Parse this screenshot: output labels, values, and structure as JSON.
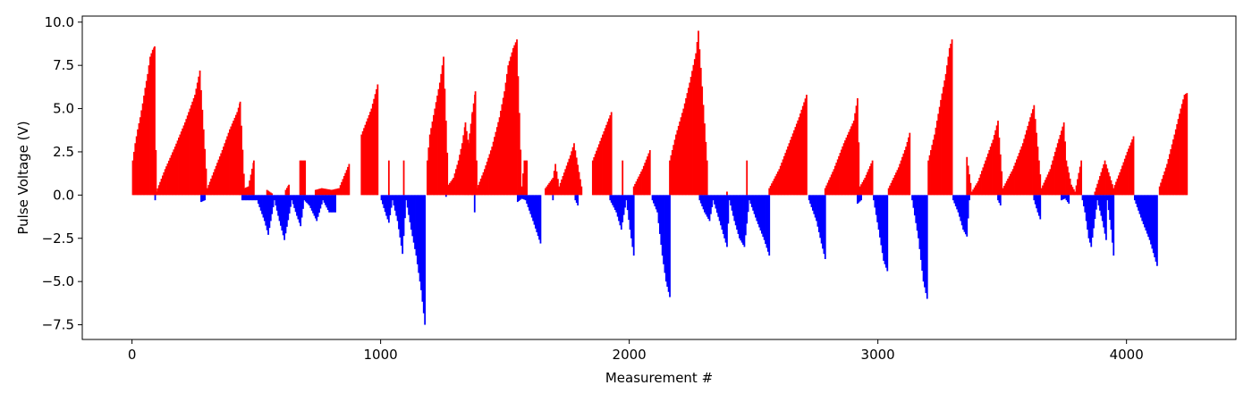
{
  "chart_data": {
    "type": "bar",
    "title": "",
    "xlabel": "Measurement #",
    "ylabel": "Pulse Voltage (V)",
    "xlim": [
      -200,
      4440
    ],
    "ylim": [
      -8.35,
      10.35
    ],
    "xticks": [
      0,
      1000,
      2000,
      3000,
      4000
    ],
    "xtick_labels": [
      "0",
      "1000",
      "2000",
      "3000",
      "4000"
    ],
    "yticks": [
      -7.5,
      -5.0,
      -2.5,
      0.0,
      2.5,
      5.0,
      7.5,
      10.0
    ],
    "ytick_labels": [
      "−7.5",
      "−5.0",
      "−2.5",
      "0.0",
      "2.5",
      "5.0",
      "7.5",
      "10.0"
    ],
    "grid": false,
    "colors": {
      "positive": "#ff0000",
      "negative": "#0000ff"
    },
    "series": [
      {
        "color": "red",
        "points": [
          [
            0,
            2.0
          ],
          [
            10,
            3.0
          ],
          [
            20,
            3.8
          ],
          [
            30,
            4.5
          ],
          [
            40,
            5.3
          ],
          [
            50,
            6.2
          ],
          [
            60,
            7.0
          ],
          [
            70,
            8.0
          ],
          [
            80,
            8.4
          ],
          [
            88,
            8.6
          ],
          [
            95,
            0.2
          ],
          [
            130,
            1.5
          ],
          [
            170,
            2.8
          ],
          [
            210,
            4.2
          ],
          [
            250,
            5.8
          ],
          [
            270,
            7.2
          ],
          [
            300,
            0.4
          ],
          [
            330,
            1.5
          ],
          [
            360,
            2.6
          ],
          [
            390,
            3.8
          ],
          [
            420,
            4.8
          ],
          [
            432,
            5.4
          ],
          [
            450,
            0.4
          ],
          [
            465,
            0.5
          ],
          [
            487,
            2.0
          ],
          [
            540,
            0.3
          ],
          [
            560,
            0.1
          ],
          [
            615,
            0.3
          ],
          [
            628,
            0.6
          ],
          [
            673,
            2.0
          ],
          [
            693,
            2.0
          ],
          [
            735,
            0.3
          ],
          [
            760,
            0.4
          ],
          [
            800,
            0.3
          ],
          [
            830,
            0.4
          ],
          [
            870,
            1.8
          ],
          [
            920,
            3.5
          ],
          [
            960,
            5.0
          ],
          [
            985,
            6.4
          ],
          [
            1030,
            2.0
          ],
          [
            1090,
            2.0
          ],
          [
            1185,
            2.0
          ],
          [
            1195,
            3.5
          ],
          [
            1215,
            5.0
          ],
          [
            1235,
            6.5
          ],
          [
            1250,
            8.0
          ],
          [
            1270,
            0.6
          ],
          [
            1290,
            1.0
          ],
          [
            1310,
            2.0
          ],
          [
            1325,
            3.0
          ],
          [
            1338,
            4.2
          ],
          [
            1350,
            3.0
          ],
          [
            1366,
            4.8
          ],
          [
            1378,
            6.0
          ],
          [
            1385,
            0.4
          ],
          [
            1415,
            1.5
          ],
          [
            1445,
            2.8
          ],
          [
            1475,
            4.5
          ],
          [
            1495,
            6.0
          ],
          [
            1510,
            7.5
          ],
          [
            1530,
            8.5
          ],
          [
            1545,
            9.0
          ],
          [
            1565,
            0.5
          ],
          [
            1575,
            2.0
          ],
          [
            1585,
            2.0
          ],
          [
            1660,
            0.4
          ],
          [
            1690,
            1.0
          ],
          [
            1700,
            1.8
          ],
          [
            1715,
            0.5
          ],
          [
            1740,
            1.5
          ],
          [
            1760,
            2.3
          ],
          [
            1775,
            3.0
          ],
          [
            1805,
            0.5
          ],
          [
            1850,
            2.0
          ],
          [
            1890,
            3.5
          ],
          [
            1925,
            4.8
          ],
          [
            1970,
            2.0
          ],
          [
            2015,
            0.5
          ],
          [
            2050,
            1.5
          ],
          [
            2080,
            2.6
          ],
          [
            2160,
            2.0
          ],
          [
            2185,
            3.5
          ],
          [
            2215,
            5.0
          ],
          [
            2240,
            6.5
          ],
          [
            2265,
            8.2
          ],
          [
            2275,
            9.5
          ],
          [
            2310,
            2.0
          ],
          [
            2390,
            0.2
          ],
          [
            2470,
            2.0
          ],
          [
            2560,
            0.4
          ],
          [
            2600,
            1.5
          ],
          [
            2640,
            3.0
          ],
          [
            2680,
            4.5
          ],
          [
            2710,
            5.8
          ],
          [
            2785,
            0.4
          ],
          [
            2820,
            1.5
          ],
          [
            2860,
            3.0
          ],
          [
            2900,
            4.3
          ],
          [
            2915,
            5.6
          ],
          [
            2925,
            0.5
          ],
          [
            2945,
            1.0
          ],
          [
            2960,
            1.5
          ],
          [
            2975,
            2.0
          ],
          [
            3040,
            0.4
          ],
          [
            3080,
            1.6
          ],
          [
            3110,
            2.8
          ],
          [
            3125,
            3.6
          ],
          [
            3200,
            2.0
          ],
          [
            3225,
            3.5
          ],
          [
            3250,
            5.5
          ],
          [
            3270,
            7.0
          ],
          [
            3285,
            8.5
          ],
          [
            3295,
            9.0
          ],
          [
            3355,
            2.2
          ],
          [
            3375,
            0.2
          ],
          [
            3400,
            0.8
          ],
          [
            3430,
            2.0
          ],
          [
            3460,
            3.2
          ],
          [
            3480,
            4.3
          ],
          [
            3500,
            0.4
          ],
          [
            3540,
            1.5
          ],
          [
            3580,
            3.0
          ],
          [
            3610,
            4.5
          ],
          [
            3625,
            5.2
          ],
          [
            3655,
            0.4
          ],
          [
            3690,
            1.5
          ],
          [
            3720,
            3.0
          ],
          [
            3745,
            4.2
          ],
          [
            3755,
            2.0
          ],
          [
            3775,
            0.6
          ],
          [
            3790,
            0.2
          ],
          [
            3815,
            2.0
          ],
          [
            3870,
            0.2
          ],
          [
            3910,
            2.0
          ],
          [
            3945,
            0.4
          ],
          [
            3975,
            1.5
          ],
          [
            4000,
            2.5
          ],
          [
            4025,
            3.4
          ],
          [
            4130,
            0.5
          ],
          [
            4160,
            1.8
          ],
          [
            4190,
            3.5
          ],
          [
            4215,
            5.0
          ],
          [
            4230,
            5.8
          ],
          [
            4240,
            5.9
          ]
        ]
      },
      {
        "color": "blue",
        "points": [
          [
            90,
            -0.3
          ],
          [
            275,
            -0.4
          ],
          [
            290,
            -0.3
          ],
          [
            440,
            -0.3
          ],
          [
            460,
            -0.3
          ],
          [
            500,
            -0.3
          ],
          [
            530,
            -1.5
          ],
          [
            545,
            -2.3
          ],
          [
            570,
            -0.3
          ],
          [
            590,
            -1.5
          ],
          [
            610,
            -2.6
          ],
          [
            640,
            -0.3
          ],
          [
            660,
            -1.2
          ],
          [
            675,
            -1.8
          ],
          [
            690,
            -0.3
          ],
          [
            710,
            -0.6
          ],
          [
            730,
            -1.2
          ],
          [
            740,
            -1.5
          ],
          [
            765,
            -0.3
          ],
          [
            790,
            -1.0
          ],
          [
            815,
            -1.0
          ],
          [
            1000,
            -0.3
          ],
          [
            1020,
            -1.2
          ],
          [
            1030,
            -1.6
          ],
          [
            1045,
            -0.3
          ],
          [
            1065,
            -1.5
          ],
          [
            1085,
            -3.4
          ],
          [
            1100,
            -0.3
          ],
          [
            1120,
            -2.0
          ],
          [
            1140,
            -3.5
          ],
          [
            1160,
            -5.5
          ],
          [
            1175,
            -7.5
          ],
          [
            1260,
            -0.1
          ],
          [
            1375,
            -1.0
          ],
          [
            1548,
            -0.4
          ],
          [
            1565,
            -0.2
          ],
          [
            1580,
            -0.3
          ],
          [
            1610,
            -1.5
          ],
          [
            1640,
            -2.8
          ],
          [
            1690,
            -0.3
          ],
          [
            1780,
            -0.3
          ],
          [
            1790,
            -0.6
          ],
          [
            1920,
            -0.3
          ],
          [
            1945,
            -1.0
          ],
          [
            1965,
            -2.0
          ],
          [
            1985,
            -0.3
          ],
          [
            2000,
            -2.0
          ],
          [
            2015,
            -3.5
          ],
          [
            2090,
            -0.3
          ],
          [
            2110,
            -1.0
          ],
          [
            2130,
            -3.5
          ],
          [
            2145,
            -5.0
          ],
          [
            2160,
            -5.9
          ],
          [
            2280,
            -0.3
          ],
          [
            2300,
            -1.0
          ],
          [
            2320,
            -1.5
          ],
          [
            2335,
            -0.3
          ],
          [
            2360,
            -1.5
          ],
          [
            2380,
            -2.5
          ],
          [
            2390,
            -3.0
          ],
          [
            2400,
            -0.3
          ],
          [
            2420,
            -1.5
          ],
          [
            2440,
            -2.5
          ],
          [
            2460,
            -3.0
          ],
          [
            2480,
            -0.3
          ],
          [
            2510,
            -1.5
          ],
          [
            2540,
            -2.6
          ],
          [
            2560,
            -3.5
          ],
          [
            2720,
            -0.3
          ],
          [
            2750,
            -1.5
          ],
          [
            2770,
            -2.8
          ],
          [
            2785,
            -3.7
          ],
          [
            2915,
            -0.5
          ],
          [
            2930,
            -0.3
          ],
          [
            2980,
            -0.3
          ],
          [
            3000,
            -2.0
          ],
          [
            3020,
            -3.8
          ],
          [
            3035,
            -4.4
          ],
          [
            3135,
            -0.3
          ],
          [
            3160,
            -2.5
          ],
          [
            3180,
            -5.0
          ],
          [
            3195,
            -6.0
          ],
          [
            3300,
            -0.3
          ],
          [
            3320,
            -1.0
          ],
          [
            3340,
            -2.0
          ],
          [
            3355,
            -2.4
          ],
          [
            3365,
            -0.3
          ],
          [
            3480,
            -0.3
          ],
          [
            3490,
            -0.6
          ],
          [
            3625,
            -0.3
          ],
          [
            3640,
            -1.0
          ],
          [
            3650,
            -1.4
          ],
          [
            3735,
            -0.3
          ],
          [
            3750,
            -0.2
          ],
          [
            3765,
            -0.5
          ],
          [
            3820,
            -0.3
          ],
          [
            3830,
            -1.0
          ],
          [
            3845,
            -2.5
          ],
          [
            3855,
            -3.0
          ],
          [
            3880,
            -0.3
          ],
          [
            3900,
            -1.5
          ],
          [
            3915,
            -2.6
          ],
          [
            3920,
            -0.3
          ],
          [
            3935,
            -2.0
          ],
          [
            3945,
            -3.5
          ],
          [
            4030,
            -0.3
          ],
          [
            4060,
            -1.5
          ],
          [
            4090,
            -2.6
          ],
          [
            4120,
            -4.1
          ]
        ]
      }
    ]
  }
}
